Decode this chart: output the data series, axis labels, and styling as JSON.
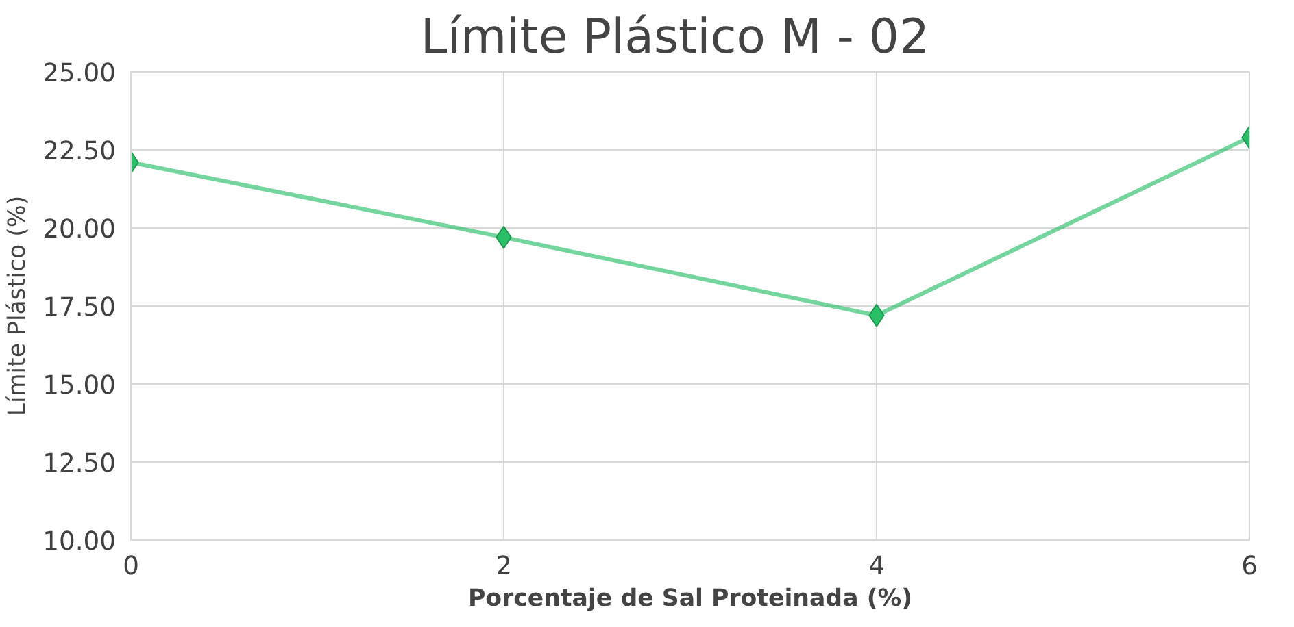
{
  "chart_data": {
    "type": "line",
    "title": "Límite Plástico M  -  02",
    "xlabel": "Porcentaje de Sal Proteinada (%)",
    "ylabel": "Límite Plástico (%)",
    "x": [
      0,
      2,
      4,
      6
    ],
    "series": [
      {
        "color": "#2bbf6a",
        "values": [
          22.1,
          19.7,
          17.2,
          22.9
        ]
      }
    ],
    "xlim": [
      0,
      6
    ],
    "xticks": [
      0,
      2,
      4,
      6
    ],
    "ylim": [
      10,
      25
    ],
    "yticks": [
      {
        "value": 10,
        "label": "10.00"
      },
      {
        "value": 12.5,
        "label": "12.50"
      },
      {
        "value": 15,
        "label": "15.00"
      },
      {
        "value": 17.5,
        "label": "17.50"
      },
      {
        "value": 20,
        "label": "20.00"
      },
      {
        "value": 22.5,
        "label": "22.50"
      },
      {
        "value": 25,
        "label": "25.00"
      }
    ],
    "grid": true,
    "marker": "diamond",
    "line_style": "solid"
  }
}
